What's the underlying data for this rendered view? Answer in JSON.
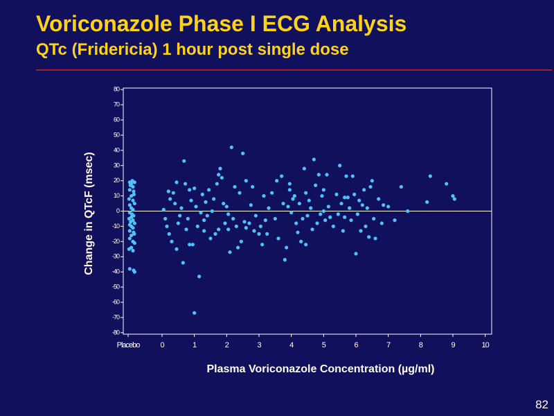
{
  "slide": {
    "title": "Voriconazole Phase I ECG Analysis",
    "subtitle": "QTc (Fridericia) 1 hour post single dose",
    "number": "82"
  },
  "colors": {
    "background": "#10105c",
    "title": "#ffd21a",
    "rule": "#9a1f2b",
    "points": "#4fc3f7",
    "axes": "#ffffff"
  },
  "chart_data": {
    "type": "scatter",
    "title": "",
    "xlabel": "Plasma Voriconazole Concentration (µg/ml)",
    "ylabel": "Change in QTcF (msec)",
    "xlim": [
      -1.2,
      10.2
    ],
    "ylim": [
      -81,
      81
    ],
    "x_ticks": [
      {
        "value": -1.05,
        "label": "Placebo"
      },
      {
        "value": 0,
        "label": "0"
      },
      {
        "value": 1,
        "label": "1"
      },
      {
        "value": 2,
        "label": "2"
      },
      {
        "value": 3,
        "label": "3"
      },
      {
        "value": 4,
        "label": "4"
      },
      {
        "value": 5,
        "label": "5"
      },
      {
        "value": 6,
        "label": "6"
      },
      {
        "value": 7,
        "label": "7"
      },
      {
        "value": 8,
        "label": "8"
      },
      {
        "value": 9,
        "label": "9"
      },
      {
        "value": 10,
        "label": "10"
      }
    ],
    "y_ticks": [
      "80",
      "70",
      "60",
      "50",
      "40",
      "30",
      "20",
      "10",
      "0",
      "-10",
      "-20",
      "-30",
      "-40",
      "-50",
      "-60",
      "-70",
      "-80"
    ],
    "reference_line_y": 0,
    "grid": false,
    "legend": "none",
    "points": [
      [
        -1.0,
        19
      ],
      [
        -0.95,
        18
      ],
      [
        -0.85,
        19
      ],
      [
        -0.9,
        16
      ],
      [
        -1.0,
        14
      ],
      [
        -0.88,
        13
      ],
      [
        -0.95,
        10
      ],
      [
        -1.02,
        8
      ],
      [
        -0.9,
        7
      ],
      [
        -0.85,
        5
      ],
      [
        -1.0,
        4
      ],
      [
        -0.95,
        2
      ],
      [
        -0.9,
        1
      ],
      [
        -1.0,
        -1
      ],
      [
        -0.88,
        -3
      ],
      [
        -0.95,
        -4
      ],
      [
        -1.02,
        -5
      ],
      [
        -0.9,
        -6
      ],
      [
        -0.85,
        -8
      ],
      [
        -1.0,
        -9
      ],
      [
        -0.95,
        -10
      ],
      [
        -0.9,
        -11
      ],
      [
        -1.0,
        -13
      ],
      [
        -0.88,
        -14
      ],
      [
        -0.95,
        -16
      ],
      [
        -1.0,
        -18
      ],
      [
        -0.9,
        -20
      ],
      [
        -0.85,
        -21
      ],
      [
        -0.95,
        -24
      ],
      [
        -1.02,
        -25
      ],
      [
        -0.9,
        -26
      ],
      [
        -1.0,
        -38
      ],
      [
        -0.88,
        -39
      ],
      [
        -0.85,
        -40
      ],
      [
        -0.92,
        20
      ],
      [
        -0.98,
        17
      ],
      [
        -0.87,
        11
      ],
      [
        -0.93,
        -2
      ],
      [
        -0.97,
        -7
      ],
      [
        -0.86,
        -15
      ],
      [
        0.05,
        1
      ],
      [
        0.1,
        -5
      ],
      [
        0.15,
        -10
      ],
      [
        0.2,
        13
      ],
      [
        0.25,
        8
      ],
      [
        0.3,
        -20
      ],
      [
        0.35,
        12
      ],
      [
        0.4,
        5
      ],
      [
        0.45,
        -25
      ],
      [
        0.5,
        -8
      ],
      [
        0.55,
        -3
      ],
      [
        0.6,
        2
      ],
      [
        0.65,
        -34
      ],
      [
        0.68,
        33
      ],
      [
        0.72,
        18
      ],
      [
        0.75,
        -12
      ],
      [
        0.8,
        -5
      ],
      [
        0.85,
        14
      ],
      [
        0.9,
        7
      ],
      [
        0.95,
        -22
      ],
      [
        1.0,
        -67
      ],
      [
        1.0,
        15
      ],
      [
        1.05,
        3
      ],
      [
        1.1,
        -10
      ],
      [
        1.15,
        -43
      ],
      [
        1.2,
        -1
      ],
      [
        1.25,
        11
      ],
      [
        1.3,
        -6
      ],
      [
        1.35,
        6
      ],
      [
        1.4,
        -3
      ],
      [
        1.45,
        14
      ],
      [
        1.5,
        -18
      ],
      [
        1.55,
        0
      ],
      [
        1.6,
        8
      ],
      [
        1.65,
        -15
      ],
      [
        1.7,
        18
      ],
      [
        1.75,
        -12
      ],
      [
        1.8,
        28
      ],
      [
        1.85,
        22
      ],
      [
        1.9,
        5
      ],
      [
        1.95,
        -8
      ],
      [
        2.0,
        3
      ],
      [
        2.05,
        -2
      ],
      [
        2.1,
        -27
      ],
      [
        2.15,
        42
      ],
      [
        2.2,
        -5
      ],
      [
        2.25,
        16
      ],
      [
        2.3,
        -10
      ],
      [
        2.35,
        -24
      ],
      [
        2.4,
        12
      ],
      [
        2.45,
        -20
      ],
      [
        2.5,
        38
      ],
      [
        2.55,
        -7
      ],
      [
        2.6,
        20
      ],
      [
        2.7,
        -8
      ],
      [
        2.75,
        4
      ],
      [
        2.8,
        16
      ],
      [
        2.85,
        -13
      ],
      [
        2.9,
        -3
      ],
      [
        3.0,
        -15
      ],
      [
        3.05,
        -10
      ],
      [
        3.1,
        -22
      ],
      [
        3.15,
        10
      ],
      [
        3.2,
        -6
      ],
      [
        3.3,
        2
      ],
      [
        3.4,
        12
      ],
      [
        3.5,
        -5
      ],
      [
        3.6,
        -18
      ],
      [
        3.7,
        23
      ],
      [
        3.75,
        5
      ],
      [
        3.8,
        -32
      ],
      [
        3.85,
        -24
      ],
      [
        3.9,
        3
      ],
      [
        3.95,
        18
      ],
      [
        4.0,
        -1
      ],
      [
        4.05,
        8
      ],
      [
        4.1,
        10
      ],
      [
        4.15,
        -8
      ],
      [
        4.2,
        -14
      ],
      [
        4.25,
        5
      ],
      [
        4.3,
        -20
      ],
      [
        4.35,
        -5
      ],
      [
        4.4,
        28
      ],
      [
        4.45,
        12
      ],
      [
        4.5,
        -3
      ],
      [
        4.55,
        7
      ],
      [
        4.6,
        2
      ],
      [
        4.65,
        -12
      ],
      [
        4.7,
        34
      ],
      [
        4.75,
        17
      ],
      [
        4.8,
        -8
      ],
      [
        4.85,
        24
      ],
      [
        4.9,
        -2
      ],
      [
        4.95,
        10
      ],
      [
        5.0,
        0
      ],
      [
        5.05,
        -6
      ],
      [
        5.1,
        24
      ],
      [
        5.15,
        3
      ],
      [
        5.2,
        -4
      ],
      [
        5.3,
        -10
      ],
      [
        5.4,
        11
      ],
      [
        5.45,
        -2
      ],
      [
        5.5,
        30
      ],
      [
        5.55,
        5
      ],
      [
        5.6,
        -13
      ],
      [
        5.65,
        -4
      ],
      [
        5.7,
        23
      ],
      [
        5.75,
        9
      ],
      [
        5.8,
        2
      ],
      [
        5.85,
        -6
      ],
      [
        5.9,
        23
      ],
      [
        5.95,
        11
      ],
      [
        6.0,
        -28
      ],
      [
        6.05,
        -2
      ],
      [
        6.1,
        7
      ],
      [
        6.15,
        -13
      ],
      [
        6.2,
        4
      ],
      [
        6.3,
        -10
      ],
      [
        6.35,
        2
      ],
      [
        6.4,
        -17
      ],
      [
        6.45,
        16
      ],
      [
        6.5,
        20
      ],
      [
        6.55,
        -5
      ],
      [
        6.7,
        8
      ],
      [
        6.8,
        -8
      ],
      [
        6.85,
        4
      ],
      [
        7.0,
        3
      ],
      [
        7.2,
        -6
      ],
      [
        7.4,
        16
      ],
      [
        7.6,
        0
      ],
      [
        8.2,
        6
      ],
      [
        8.3,
        23
      ],
      [
        8.8,
        18
      ],
      [
        9.0,
        10
      ],
      [
        9.05,
        8
      ],
      [
        0.22,
        -15
      ],
      [
        0.45,
        19
      ],
      [
        0.85,
        -22
      ],
      [
        1.3,
        -13
      ],
      [
        1.75,
        24
      ],
      [
        2.05,
        -12
      ],
      [
        2.6,
        -11
      ],
      [
        3.25,
        -15
      ],
      [
        3.55,
        20
      ],
      [
        3.95,
        14
      ],
      [
        4.45,
        -22
      ],
      [
        5.0,
        14
      ],
      [
        5.65,
        9
      ],
      [
        6.25,
        14
      ],
      [
        6.6,
        -18
      ]
    ]
  }
}
